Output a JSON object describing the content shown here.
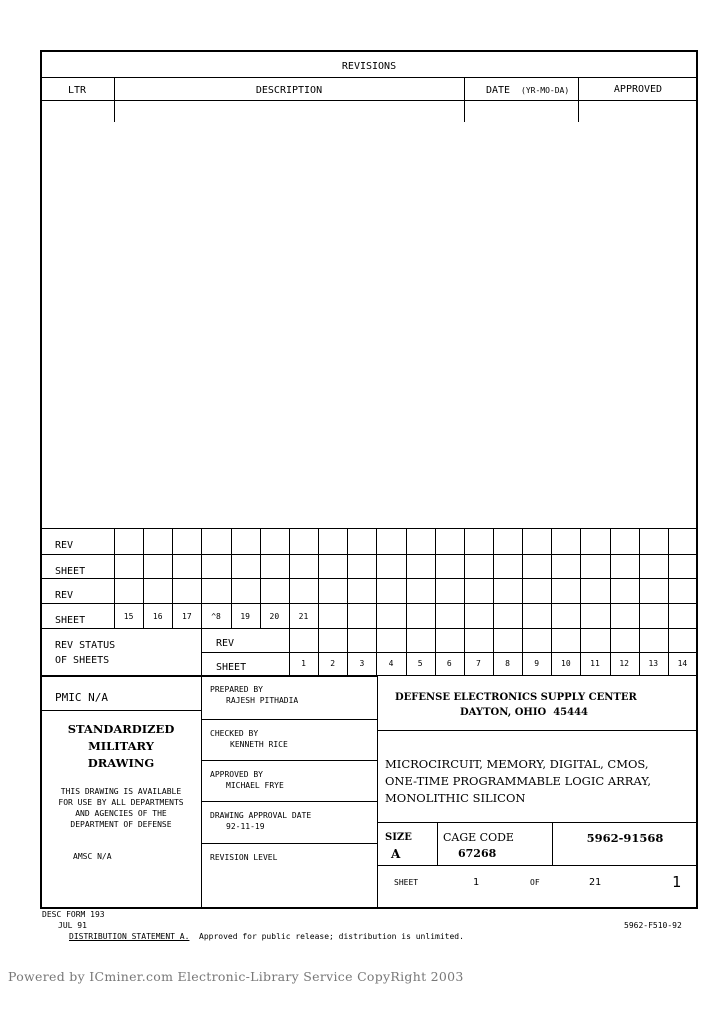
{
  "revisions": {
    "title": "REVISIONS",
    "columns": [
      "LTR",
      "DESCRIPTION",
      "DATE",
      "APPROVED"
    ],
    "date_format": "(YR-MO-DA)"
  },
  "grid": {
    "rev_label": "REV",
    "sheet_label": "SHEET",
    "upper_sheets": [
      "15",
      "16",
      "17",
      "^8",
      "19",
      "20",
      "21"
    ],
    "rev_status_label": "REV STATUS\nOF SHEETS",
    "lower_sheets": [
      "1",
      "2",
      "3",
      "4",
      "5",
      "6",
      "7",
      "8",
      "9",
      "10",
      "11",
      "12",
      "13",
      "14"
    ]
  },
  "left": {
    "pmic": "PMIC N/A",
    "title": "STANDARDIZED\nMILITARY\nDRAWING",
    "availability": "THIS DRAWING IS AVAILABLE\nFOR USE BY ALL DEPARTMENTS\nAND AGENCIES OF THE\nDEPARTMENT OF DEFENSE",
    "amsc": "AMSC N/A"
  },
  "middle": {
    "prepared_label": "PREPARED BY",
    "prepared": "RAJESH PITHADIA",
    "checked_label": "CHECKED BY",
    "checked": "KENNETH RICE",
    "approved_label": "APPROVED BY",
    "approved": "MICHAEL FRYE",
    "date_label": "DRAWING APPROVAL DATE",
    "date": "92-11-19",
    "revision_label": "REVISION LEVEL"
  },
  "right": {
    "org": "DEFENSE ELECTRONICS SUPPLY CENTER",
    "city": "DAYTON, OHIO  45444",
    "title": "MICROCIRCUIT, MEMORY, DIGITAL, CMOS,\nONE-TIME PROGRAMMABLE LOGIC ARRAY,\nMONOLITHIC SILICON",
    "size_label": "SIZE",
    "size": "A",
    "cage_label": "CAGE CODE",
    "cage": "67268",
    "dwg_number": "5962-91568",
    "sheet_label": "SHEET",
    "sheet": "1",
    "of_label": "OF",
    "of": "21",
    "page": "1"
  },
  "footer": {
    "form": "DESC FORM 193",
    "form_date": "JUL 91",
    "distribution_label": "DISTRIBUTION STATEMENT A.",
    "distribution": "Approved for public release; distribution is unlimited.",
    "code": "5962-F510-92",
    "watermark": "Powered by ICminer.com Electronic-Library Service CopyRight 2003"
  }
}
